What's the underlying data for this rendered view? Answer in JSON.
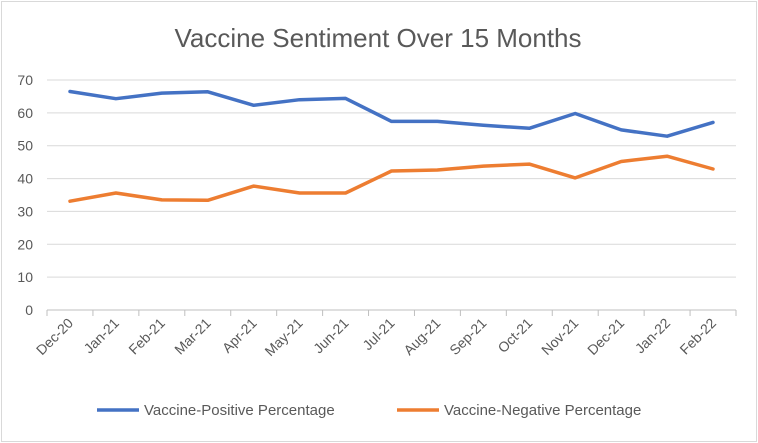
{
  "chart_data": {
    "type": "line",
    "title": "Vaccine Sentiment Over 15 Months",
    "xlabel": "",
    "ylabel": "",
    "categories": [
      "Dec-20",
      "Jan-21",
      "Feb-21",
      "Mar-21",
      "Apr-21",
      "May-21",
      "Jun-21",
      "Jul-21",
      "Aug-21",
      "Sep-21",
      "Oct-21",
      "Nov-21",
      "Dec-21",
      "Jan-22",
      "Feb-22"
    ],
    "ylim": [
      0,
      70
    ],
    "yticks": [
      "0",
      "10",
      "20",
      "30",
      "40",
      "50",
      "60",
      "70"
    ],
    "grid": true,
    "legend_position": "bottom",
    "series": [
      {
        "name": "Vaccine-Positive Percentage",
        "color": "#4472c4",
        "values": [
          66.5,
          64.3,
          66.0,
          66.4,
          62.3,
          64.0,
          64.4,
          57.4,
          57.4,
          56.2,
          55.3,
          59.8,
          54.8,
          52.9,
          57.1
        ]
      },
      {
        "name": "Vaccine-Negative Percentage",
        "color": "#ed7d31",
        "values": [
          33.1,
          35.6,
          33.5,
          33.4,
          37.7,
          35.6,
          35.6,
          42.3,
          42.6,
          43.8,
          44.4,
          40.2,
          45.2,
          46.8,
          42.9
        ]
      }
    ]
  }
}
